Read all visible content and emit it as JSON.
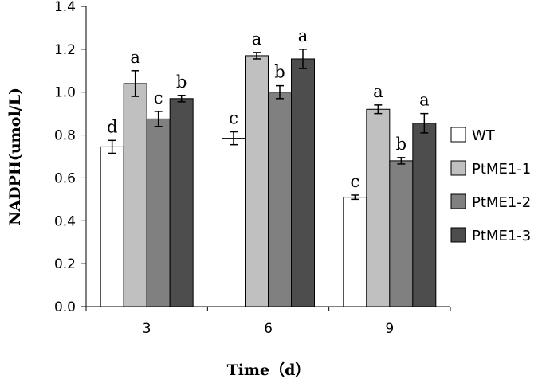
{
  "chart_data": {
    "type": "bar",
    "xlabel": "Time（d）",
    "ylabel": "NADPH(umol/L)",
    "categories": [
      "3",
      "6",
      "9"
    ],
    "ylim": [
      0,
      1.4
    ],
    "yticks": [
      "0.0",
      "0.2",
      "0.4",
      "0.6",
      "0.8",
      "1.0",
      "1.2",
      "1.4"
    ],
    "series": [
      {
        "name": "WT",
        "values": [
          0.745,
          0.785,
          0.51
        ],
        "errors": [
          0.03,
          0.03,
          0.01
        ],
        "letters": [
          "d",
          "c",
          "c"
        ],
        "color": "#ffffff"
      },
      {
        "name": "PtME1-1",
        "values": [
          1.04,
          1.17,
          0.92
        ],
        "errors": [
          0.06,
          0.015,
          0.02
        ],
        "letters": [
          "a",
          "a",
          "a"
        ],
        "color": "#c0c0c0"
      },
      {
        "name": "PtME1-2",
        "values": [
          0.875,
          1.0,
          0.68
        ],
        "errors": [
          0.035,
          0.03,
          0.015
        ],
        "letters": [
          "c",
          "b",
          "b"
        ],
        "color": "#808080"
      },
      {
        "name": "PtME1-3",
        "values": [
          0.97,
          1.155,
          0.855
        ],
        "errors": [
          0.015,
          0.045,
          0.045
        ],
        "letters": [
          "b",
          "a",
          "a"
        ],
        "color": "#4d4d4d"
      }
    ],
    "grid": false,
    "legend_position": "right"
  }
}
